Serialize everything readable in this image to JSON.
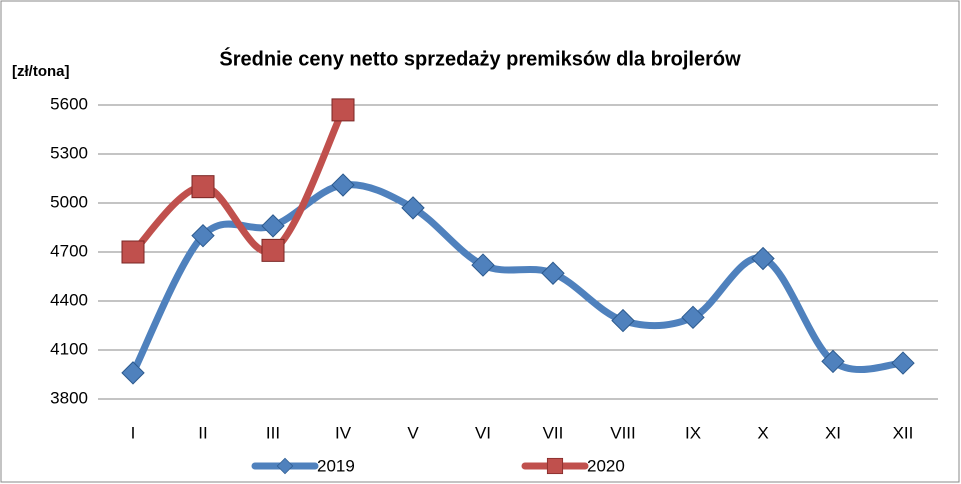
{
  "chart_data": {
    "type": "line",
    "title": "Średnie ceny netto  sprzedaży premiksów dla brojlerów",
    "y_label": "[zł/tona]",
    "categories": [
      "I",
      "II",
      "III",
      "IV",
      "V",
      "VI",
      "VII",
      "VIII",
      "IX",
      "X",
      "XI",
      "XII"
    ],
    "series": [
      {
        "name": "2019",
        "color": "#4f81bd",
        "marker": "diamond",
        "values": [
          3960,
          4800,
          4860,
          5110,
          4970,
          4620,
          4570,
          4280,
          4300,
          4660,
          4030,
          4020
        ]
      },
      {
        "name": "2020",
        "color": "#c0504d",
        "marker": "square",
        "values": [
          4700,
          5100,
          4710,
          5570,
          null,
          null,
          null,
          null,
          null,
          null,
          null,
          null
        ]
      }
    ],
    "ylim": [
      3800,
      5600
    ],
    "yticks": [
      3800,
      4100,
      4400,
      4700,
      5000,
      5300,
      5600
    ],
    "grid": true,
    "smooth": true,
    "legend": "bottom"
  }
}
